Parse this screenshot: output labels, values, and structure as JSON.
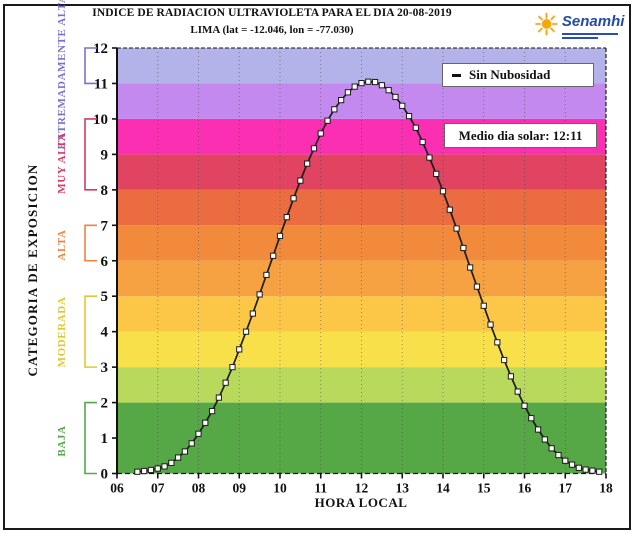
{
  "header": {
    "title": "INDICE DE RADIACION ULTRAVIOLETA PARA EL DIA 20-08-2019",
    "subtitle": "LIMA (lat = -12.046, lon = -77.030)"
  },
  "logo": {
    "name": "Senamhi",
    "sun_color": "#f5a800",
    "text_color": "#234aa5"
  },
  "legend": {
    "series_label": "Sin Nubosidad",
    "solar_noon_label": "Medio dia solar: 12:11"
  },
  "y_axis_title": "CATEGORIA DE EXPOSICION",
  "x_axis_title": "HORA LOCAL",
  "chart_data": {
    "type": "line",
    "title": "INDICE DE RADIACION ULTRAVIOLETA PARA EL DIA 20-08-2019",
    "subtitle": "LIMA (lat = -12.046, lon = -77.030)",
    "xlabel": "HORA LOCAL",
    "ylabel": "CATEGORIA DE EXPOSICION",
    "xlim_hours": [
      6,
      18
    ],
    "ylim": [
      0,
      12
    ],
    "x_ticks": [
      "06",
      "07",
      "08",
      "09",
      "10",
      "11",
      "12",
      "13",
      "14",
      "15",
      "16",
      "17",
      "18"
    ],
    "y_ticks": [
      0,
      1,
      2,
      3,
      4,
      5,
      6,
      7,
      8,
      9,
      10,
      11,
      12
    ],
    "grid": "vertical-dotted",
    "legend_position": "top-right",
    "solar_noon": "12:11",
    "series": [
      {
        "name": "Sin Nubosidad",
        "marker": "white-square",
        "line_color": "#1c1c1c",
        "x": [
          "06:30",
          "06:40",
          "06:50",
          "07:00",
          "07:10",
          "07:20",
          "07:30",
          "07:40",
          "07:50",
          "08:00",
          "08:10",
          "08:20",
          "08:30",
          "08:40",
          "08:50",
          "09:00",
          "09:10",
          "09:20",
          "09:30",
          "09:40",
          "09:50",
          "10:00",
          "10:10",
          "10:20",
          "10:30",
          "10:40",
          "10:50",
          "11:00",
          "11:10",
          "11:20",
          "11:30",
          "11:40",
          "11:50",
          "12:00",
          "12:10",
          "12:20",
          "12:30",
          "12:40",
          "12:50",
          "13:00",
          "13:10",
          "13:20",
          "13:30",
          "13:40",
          "13:50",
          "14:00",
          "14:10",
          "14:20",
          "14:30",
          "14:40",
          "14:50",
          "15:00",
          "15:10",
          "15:20",
          "15:30",
          "15:40",
          "15:50",
          "16:00",
          "16:10",
          "16:20",
          "16:30",
          "16:40",
          "16:50",
          "17:00",
          "17:10",
          "17:20",
          "17:30",
          "17:40",
          "17:50"
        ],
        "values": [
          0.05,
          0.07,
          0.1,
          0.14,
          0.2,
          0.3,
          0.45,
          0.62,
          0.85,
          1.12,
          1.43,
          1.76,
          2.14,
          2.56,
          3.0,
          3.5,
          4.0,
          4.51,
          5.05,
          5.6,
          6.14,
          6.7,
          7.23,
          7.76,
          8.26,
          8.74,
          9.17,
          9.59,
          9.95,
          10.27,
          10.53,
          10.75,
          10.91,
          11.01,
          11.05,
          11.04,
          10.95,
          10.81,
          10.62,
          10.37,
          10.08,
          9.75,
          9.35,
          8.91,
          8.45,
          7.96,
          7.44,
          6.91,
          6.36,
          5.81,
          5.27,
          4.73,
          4.2,
          3.7,
          3.2,
          2.74,
          2.31,
          1.91,
          1.56,
          1.24,
          0.96,
          0.71,
          0.52,
          0.36,
          0.25,
          0.16,
          0.11,
          0.08,
          0.05
        ]
      }
    ],
    "bands": [
      {
        "range": [
          0,
          2
        ],
        "color": "#56a745"
      },
      {
        "range": [
          2,
          3
        ],
        "color": "#b9d95c"
      },
      {
        "range": [
          3,
          4
        ],
        "color": "#f8e04a"
      },
      {
        "range": [
          4,
          5
        ],
        "color": "#fcc747"
      },
      {
        "range": [
          5,
          6
        ],
        "color": "#f6a243"
      },
      {
        "range": [
          6,
          7
        ],
        "color": "#f28a3b"
      },
      {
        "range": [
          7,
          8
        ],
        "color": "#ea6c40"
      },
      {
        "range": [
          8,
          9
        ],
        "color": "#e04460"
      },
      {
        "range": [
          9,
          10
        ],
        "color": "#fb2fb1"
      },
      {
        "range": [
          10,
          11
        ],
        "color": "#c489ef"
      },
      {
        "range": [
          11,
          12
        ],
        "color": "#b3b2e9"
      }
    ],
    "exposure_categories": [
      {
        "label": "EXTREMADAMENTE ALTA",
        "color": "#7d6fd0",
        "from": 11,
        "to": 12,
        "label_center_y": 72
      },
      {
        "label": "MUY ALTA",
        "color": "#d63a66",
        "from": 8,
        "to": 10,
        "label_center_y": 163
      },
      {
        "label": "ALTA",
        "color": "#ee8440",
        "from": 6,
        "to": 7,
        "label_center_y": 245
      },
      {
        "label": "MODERADA",
        "color": "#e0c832",
        "from": 3,
        "to": 5,
        "label_center_y": 332
      },
      {
        "label": "BAJA",
        "color": "#53a948",
        "from": 0,
        "to": 2,
        "label_center_y": 441
      }
    ]
  }
}
